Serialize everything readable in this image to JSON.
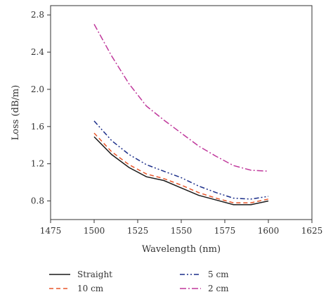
{
  "chart_data": {
    "type": "line",
    "title": "",
    "xlabel": "Wavelength (nm)",
    "ylabel": "Loss (dB/m)",
    "xlim": [
      1475,
      1625
    ],
    "ylim": [
      0.6,
      2.9
    ],
    "xticks": [
      1475,
      1500,
      1525,
      1550,
      1575,
      1600,
      1625
    ],
    "yticks": [
      0.8,
      1.2,
      1.6,
      2.0,
      2.4,
      2.8
    ],
    "xtick_labels": [
      "1475",
      "1500",
      "1525",
      "1550",
      "1575",
      "1600",
      "1625"
    ],
    "ytick_labels": [
      "0.8",
      "1.2",
      "1.6",
      "2.0",
      "2.4",
      "2.8"
    ],
    "grid": false,
    "legend_position": "bottom",
    "x": [
      1500,
      1510,
      1520,
      1530,
      1540,
      1550,
      1560,
      1570,
      1580,
      1590,
      1600
    ],
    "series": [
      {
        "name": "Straight",
        "color": "#1a1a1a",
        "dash": "solid",
        "values": [
          1.49,
          1.3,
          1.16,
          1.06,
          1.02,
          0.94,
          0.86,
          0.81,
          0.76,
          0.76,
          0.8
        ]
      },
      {
        "name": "10 cm",
        "color": "#e8562a",
        "dash": "dash",
        "values": [
          1.53,
          1.33,
          1.19,
          1.09,
          1.04,
          0.97,
          0.89,
          0.83,
          0.78,
          0.78,
          0.82
        ]
      },
      {
        "name": "5 cm",
        "color": "#1c2f8a",
        "dash": "dashdotdot",
        "values": [
          1.66,
          1.45,
          1.3,
          1.19,
          1.12,
          1.05,
          0.96,
          0.89,
          0.83,
          0.82,
          0.85
        ]
      },
      {
        "name": "2 cm",
        "color": "#c0399c",
        "dash": "dashdot",
        "values": [
          2.7,
          2.36,
          2.06,
          1.82,
          1.67,
          1.53,
          1.39,
          1.28,
          1.18,
          1.13,
          1.12
        ]
      }
    ]
  }
}
